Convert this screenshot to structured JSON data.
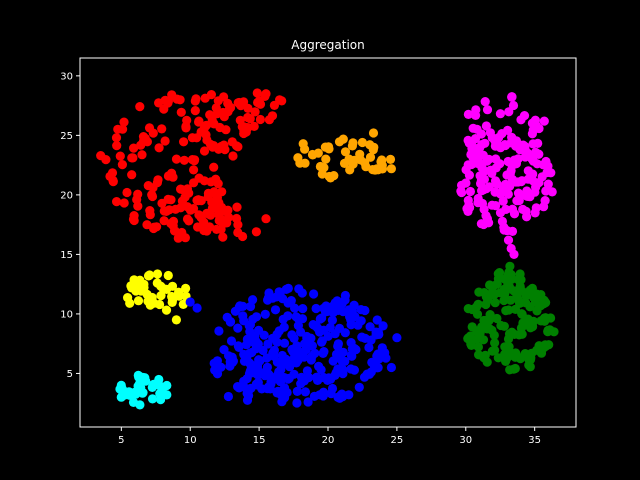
{
  "chart_data": {
    "type": "scatter",
    "title": "Aggregation",
    "xlabel": "",
    "ylabel": "",
    "xlim": [
      2.0,
      38.0
    ],
    "ylim": [
      0.5,
      31.5
    ],
    "xticks": [
      5,
      10,
      15,
      20,
      25,
      30,
      35
    ],
    "yticks": [
      5,
      10,
      15,
      20,
      25,
      30
    ],
    "grid": false,
    "legend": "none",
    "background": "#000000",
    "series": [
      {
        "color": "#ff0000",
        "clusters": [
          {
            "cx": 10.5,
            "cy": 22.5,
            "rx": 6.8,
            "ry": 6.3,
            "count": 150
          },
          {
            "cx": 14.5,
            "cy": 25.5,
            "rx": 3.5,
            "ry": 3.5,
            "count": 40
          },
          {
            "cx": 12.5,
            "cy": 19.0,
            "rx": 3.2,
            "ry": 2.5,
            "count": 30
          }
        ],
        "exclude": {
          "cx": 17.5,
          "cy": 21.5,
          "rx": 4.6,
          "ry": 5.2
        },
        "points": [
          [
            3.5,
            23.3
          ],
          [
            15.5,
            28.5
          ],
          [
            15.5,
            18.0
          ],
          [
            14.8,
            16.9
          ],
          [
            13.8,
            16.5
          ]
        ]
      },
      {
        "color": "#ffa500",
        "clusters": [
          {
            "cx": 21.2,
            "cy": 23.1,
            "rx": 3.4,
            "ry": 1.8,
            "count": 45
          }
        ],
        "points": [
          [
            18.2,
            24.3
          ],
          [
            24.6,
            22.2
          ],
          [
            23.3,
            25.2
          ]
        ]
      },
      {
        "color": "#ff00ff",
        "clusters": [
          {
            "cx": 32.9,
            "cy": 21.0,
            "rx": 3.5,
            "ry": 4.2,
            "count": 120
          },
          {
            "cx": 32.6,
            "cy": 25.0,
            "rx": 3.0,
            "ry": 3.4,
            "count": 60
          }
        ],
        "points": [
          [
            33.0,
            17.0
          ],
          [
            33.1,
            16.2
          ],
          [
            33.3,
            15.5
          ],
          [
            33.5,
            15.0
          ],
          [
            29.7,
            20.2
          ],
          [
            35.7,
            26.2
          ]
        ]
      },
      {
        "color": "#ffff00",
        "clusters": [
          {
            "cx": 7.5,
            "cy": 11.8,
            "rx": 2.3,
            "ry": 1.7,
            "count": 40
          }
        ],
        "points": [
          [
            9.5,
            10.8
          ],
          [
            9.0,
            9.5
          ]
        ]
      },
      {
        "color": "#0000ff",
        "clusters": [
          {
            "cx": 18.0,
            "cy": 7.3,
            "rx": 6.6,
            "ry": 4.9,
            "count": 260
          },
          {
            "cx": 14.5,
            "cy": 5.0,
            "rx": 3.0,
            "ry": 2.5,
            "count": 40
          }
        ],
        "points": [
          [
            10.5,
            10.5
          ],
          [
            10.0,
            11.0
          ],
          [
            25.0,
            8.0
          ],
          [
            24.6,
            5.5
          ]
        ]
      },
      {
        "color": "#00ffff",
        "clusters": [
          {
            "cx": 6.6,
            "cy": 3.6,
            "rx": 1.8,
            "ry": 1.3,
            "count": 35
          }
        ],
        "points": [
          [
            5.0,
            3.0
          ],
          [
            8.3,
            3.2
          ]
        ]
      },
      {
        "color": "#008000",
        "clusters": [
          {
            "cx": 33.2,
            "cy": 9.1,
            "rx": 3.2,
            "ry": 4.1,
            "count": 140
          },
          {
            "cx": 33.2,
            "cy": 12.5,
            "rx": 1.2,
            "ry": 1.6,
            "count": 12
          }
        ],
        "points": [
          [
            33.2,
            14.0
          ],
          [
            33.3,
            13.3
          ],
          [
            30.2,
            8.0
          ],
          [
            36.4,
            8.5
          ]
        ]
      }
    ]
  }
}
